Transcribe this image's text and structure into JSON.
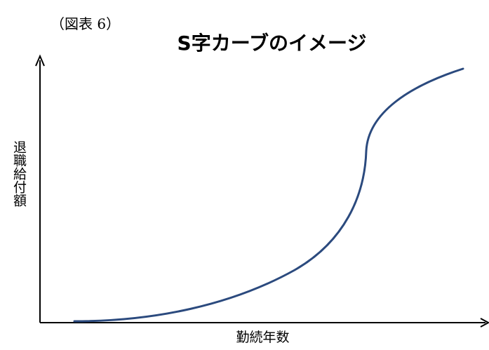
{
  "figure_label": "（図表 6）",
  "chart_data": {
    "type": "line",
    "title": "S字カーブのイメージ",
    "xlabel": "勤続年数",
    "ylabel": "退職給付額",
    "line_color": "#2b4a7e",
    "axis_color": "#000000",
    "ticks": false,
    "grid": false
  }
}
